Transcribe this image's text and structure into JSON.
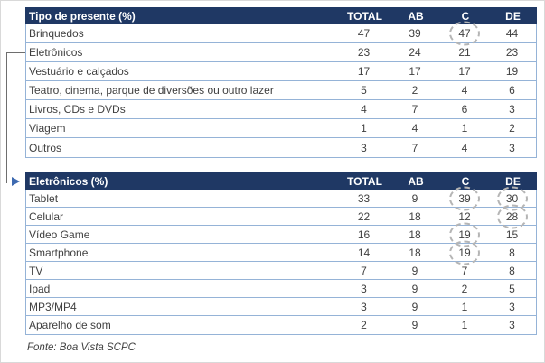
{
  "columns": [
    "TOTAL",
    "AB",
    "C",
    "DE"
  ],
  "tables": [
    {
      "title": "Tipo de presente (%)",
      "rows": [
        {
          "label": "Brinquedos",
          "values": [
            "47",
            "39",
            "47",
            "44"
          ],
          "circled": [
            2
          ]
        },
        {
          "label": "Eletrônicos",
          "values": [
            "23",
            "24",
            "21",
            "23"
          ],
          "circled": []
        },
        {
          "label": "Vestuário e calçados",
          "values": [
            "17",
            "17",
            "17",
            "19"
          ],
          "circled": []
        },
        {
          "label": "Teatro, cinema, parque de diversões ou outro lazer",
          "values": [
            "5",
            "2",
            "4",
            "6"
          ],
          "circled": []
        },
        {
          "label": "Livros, CDs e DVDs",
          "values": [
            "4",
            "7",
            "6",
            "3"
          ],
          "circled": []
        },
        {
          "label": "Viagem",
          "values": [
            "1",
            "4",
            "1",
            "2"
          ],
          "circled": []
        },
        {
          "label": "Outros",
          "values": [
            "3",
            "7",
            "4",
            "3"
          ],
          "circled": []
        }
      ]
    },
    {
      "title": "Eletrônicos (%)",
      "rows": [
        {
          "label": "Tablet",
          "values": [
            "33",
            "9",
            "39",
            "30"
          ],
          "circled": [
            2,
            3
          ]
        },
        {
          "label": "Celular",
          "values": [
            "22",
            "18",
            "12",
            "28"
          ],
          "circled": [
            3
          ]
        },
        {
          "label": "Vídeo Game",
          "values": [
            "16",
            "18",
            "19",
            "15"
          ],
          "circled": [
            2
          ]
        },
        {
          "label": "Smartphone",
          "values": [
            "14",
            "18",
            "19",
            "8"
          ],
          "circled": [
            2
          ]
        },
        {
          "label": "TV",
          "values": [
            "7",
            "9",
            "7",
            "8"
          ],
          "circled": []
        },
        {
          "label": "Ipad",
          "values": [
            "3",
            "9",
            "2",
            "5"
          ],
          "circled": []
        },
        {
          "label": "MP3/MP4",
          "values": [
            "3",
            "9",
            "1",
            "3"
          ],
          "circled": []
        },
        {
          "label": "Aparelho de som",
          "values": [
            "2",
            "9",
            "1",
            "3"
          ],
          "circled": []
        }
      ]
    }
  ],
  "footer": {
    "source_note": "Fonte: Boa Vista SCPC"
  },
  "colors": {
    "header_bg": "#1F3864",
    "header_text": "#FFFFFF",
    "row_border": "#95B3D7",
    "body_text": "#404040",
    "circle_dash": "#B5B5B5",
    "arrow_blue": "#3E6AB0",
    "connector_gray": "#6E6E6E"
  }
}
